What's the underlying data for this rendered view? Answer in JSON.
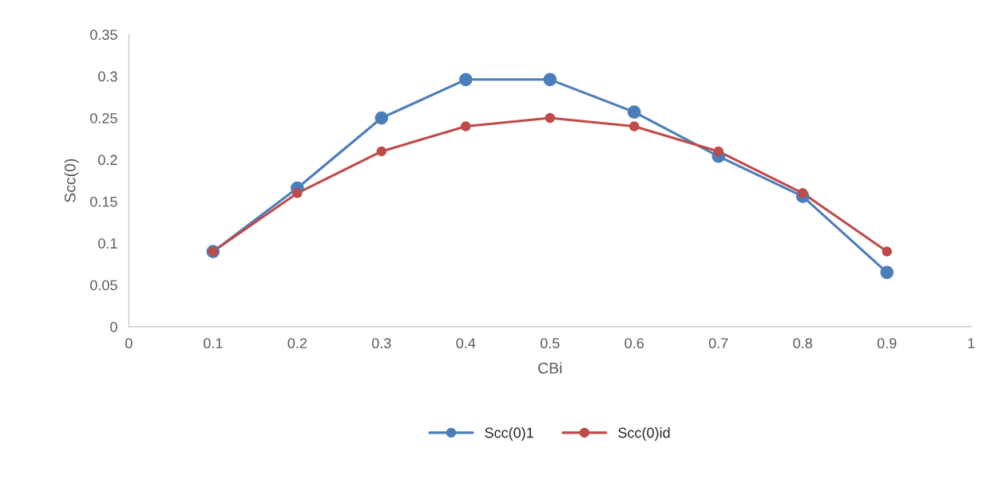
{
  "chart_data": {
    "type": "line",
    "xlabel": "CBi",
    "ylabel": "Scc(0)",
    "x": [
      0.1,
      0.2,
      0.3,
      0.4,
      0.5,
      0.6,
      0.7,
      0.8,
      0.9
    ],
    "series": [
      {
        "name": "Scc(0)1",
        "color": "#4a7ebb",
        "values": [
          0.09,
          0.166,
          0.25,
          0.296,
          0.296,
          0.257,
          0.204,
          0.156,
          0.065
        ]
      },
      {
        "name": "Scc(0)id",
        "color": "#be4b48",
        "values": [
          0.09,
          0.16,
          0.21,
          0.24,
          0.25,
          0.24,
          0.21,
          0.16,
          0.09
        ]
      }
    ],
    "xlim": [
      0,
      1
    ],
    "xticks": [
      0,
      0.1,
      0.2,
      0.3,
      0.4,
      0.5,
      0.6,
      0.7,
      0.8,
      0.9,
      1
    ],
    "ylim": [
      0,
      0.35
    ],
    "yticks": [
      0,
      0.05,
      0.1,
      0.15,
      0.2,
      0.25,
      0.3,
      0.35
    ],
    "grid": false,
    "legend": "bottom",
    "marker": "circle",
    "line_style": "solid"
  }
}
